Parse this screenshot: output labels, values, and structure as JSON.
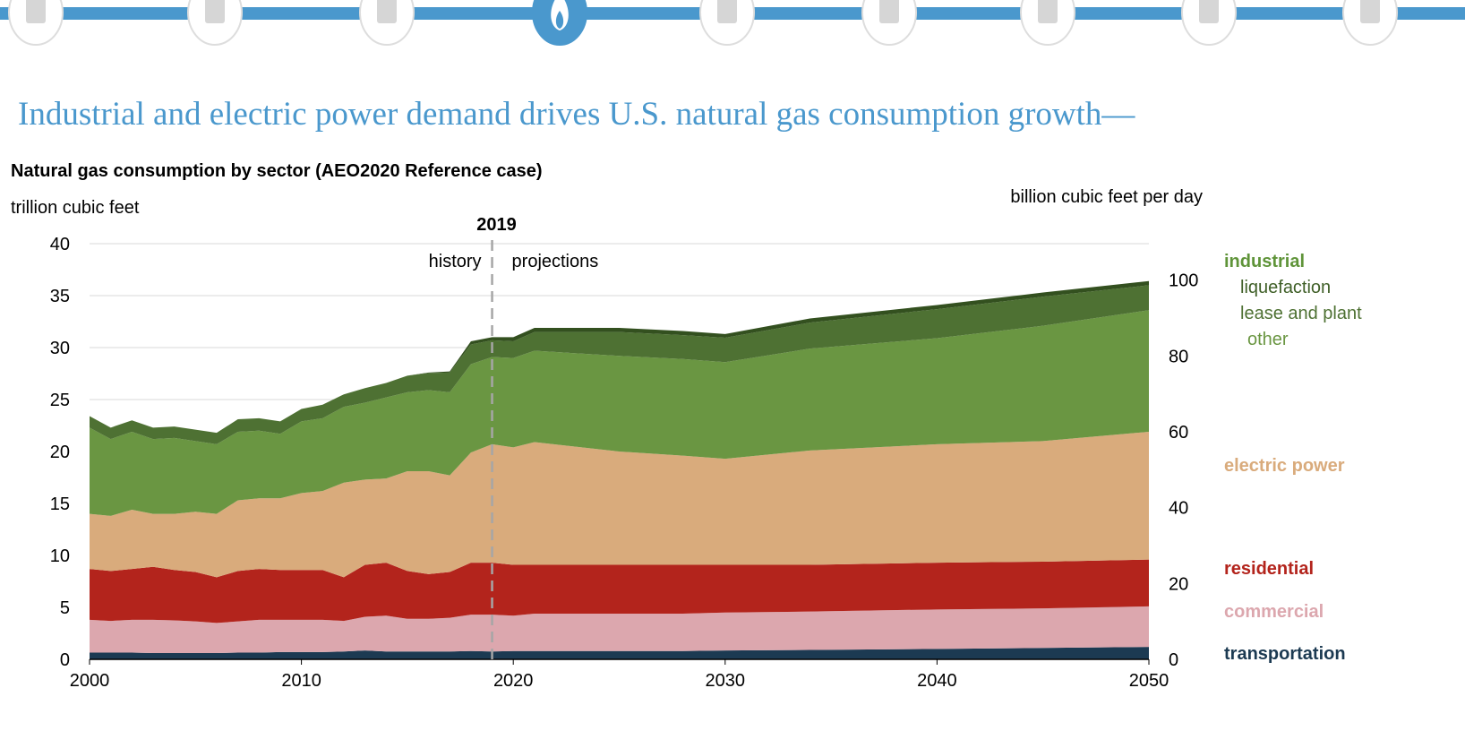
{
  "nav": {
    "accent": "#4a98cd",
    "icons": [
      "documents-icon",
      "magnifier-chart-icon",
      "oil-barrel-icon",
      "natural-gas-flame-icon",
      "electricity-bolt-icon",
      "car-icon",
      "commercial-building-icon",
      "industrial-factory-icon",
      "report-clipboard-icon"
    ],
    "active_index": 3
  },
  "title": "Industrial and electric power demand drives U.S. natural gas consumption growth—",
  "chart_data": {
    "type": "area",
    "stacked": true,
    "title": "Natural gas consumption by sector (AEO2020 Reference case)",
    "ylabel_left": "trillion cubic feet",
    "ylabel_right": "billion cubic feet per day",
    "xlim": [
      2000,
      2050
    ],
    "ylim_left": [
      0,
      40
    ],
    "ylim_right": [
      0,
      110
    ],
    "x_ticks": [
      "2000",
      "2010",
      "2020",
      "2030",
      "2040",
      "2050"
    ],
    "y_ticks_left": [
      "0",
      "5",
      "10",
      "15",
      "20",
      "25",
      "30",
      "35",
      "40"
    ],
    "y_ticks_right": [
      "0",
      "20",
      "40",
      "60",
      "80",
      "100"
    ],
    "grid": true,
    "divider": {
      "year": 2019,
      "label": "2019",
      "left_label": "history",
      "right_label": "projections"
    },
    "x": [
      2000,
      2001,
      2002,
      2003,
      2004,
      2005,
      2006,
      2007,
      2008,
      2009,
      2010,
      2011,
      2012,
      2013,
      2014,
      2015,
      2016,
      2017,
      2018,
      2019,
      2020,
      2021,
      2025,
      2028,
      2030,
      2034,
      2040,
      2045,
      2050
    ],
    "series": [
      {
        "name": "transportation",
        "color": "#1c3a52",
        "values": [
          0.65,
          0.65,
          0.65,
          0.6,
          0.6,
          0.6,
          0.6,
          0.65,
          0.65,
          0.7,
          0.7,
          0.7,
          0.75,
          0.85,
          0.75,
          0.75,
          0.75,
          0.75,
          0.8,
          0.75,
          0.8,
          0.8,
          0.8,
          0.8,
          0.85,
          0.9,
          1.0,
          1.1,
          1.2
        ]
      },
      {
        "name": "commercial",
        "color": "#dca7ae",
        "values": [
          3.15,
          3.05,
          3.15,
          3.2,
          3.15,
          3.05,
          2.9,
          3.0,
          3.15,
          3.1,
          3.1,
          3.1,
          2.95,
          3.25,
          3.45,
          3.15,
          3.15,
          3.25,
          3.5,
          3.55,
          3.4,
          3.6,
          3.6,
          3.6,
          3.65,
          3.7,
          3.8,
          3.8,
          3.9
        ]
      },
      {
        "name": "residential",
        "color": "#b3241c",
        "values": [
          4.9,
          4.8,
          4.9,
          5.1,
          4.85,
          4.75,
          4.4,
          4.85,
          4.9,
          4.8,
          4.8,
          4.8,
          4.2,
          5.0,
          5.1,
          4.6,
          4.3,
          4.4,
          5.0,
          5.0,
          4.9,
          4.7,
          4.7,
          4.7,
          4.6,
          4.5,
          4.5,
          4.5,
          4.5
        ]
      },
      {
        "name": "electric power",
        "color": "#d9ab7c",
        "values": [
          5.3,
          5.3,
          5.7,
          5.1,
          5.4,
          5.8,
          6.1,
          6.8,
          6.8,
          6.9,
          7.4,
          7.6,
          9.1,
          8.2,
          8.1,
          9.6,
          9.9,
          9.3,
          10.6,
          11.4,
          11.3,
          11.8,
          10.9,
          10.5,
          10.2,
          11.0,
          11.4,
          11.6,
          12.3
        ]
      },
      {
        "name": "other",
        "color": "#6a9642",
        "values": [
          8.3,
          7.4,
          7.5,
          7.2,
          7.3,
          6.8,
          6.7,
          6.6,
          6.5,
          6.2,
          6.9,
          7.0,
          7.3,
          7.4,
          7.8,
          7.6,
          7.8,
          8.0,
          8.5,
          8.4,
          8.6,
          8.8,
          9.2,
          9.3,
          9.3,
          9.8,
          10.2,
          11.1,
          11.7
        ]
      },
      {
        "name": "lease and plant",
        "color": "#4e7133",
        "values": [
          1.1,
          1.1,
          1.1,
          1.1,
          1.1,
          1.1,
          1.1,
          1.2,
          1.2,
          1.2,
          1.2,
          1.3,
          1.2,
          1.4,
          1.4,
          1.6,
          1.65,
          1.9,
          1.9,
          1.6,
          1.6,
          1.8,
          2.3,
          2.3,
          2.35,
          2.5,
          2.8,
          2.8,
          2.4
        ]
      },
      {
        "name": "liquefaction",
        "color": "#33501f",
        "values": [
          0,
          0,
          0,
          0,
          0,
          0,
          0,
          0,
          0,
          0,
          0,
          0,
          0,
          0,
          0,
          0,
          0.05,
          0.1,
          0.3,
          0.3,
          0.4,
          0.4,
          0.4,
          0.4,
          0.35,
          0.4,
          0.4,
          0.4,
          0.4
        ]
      }
    ],
    "legend": {
      "placement": "right",
      "group_label": "industrial",
      "group_color": "#5f9439",
      "items": [
        {
          "label": "liquefaction",
          "color": "#3f5f27",
          "bold": false
        },
        {
          "label": "lease and plant",
          "color": "#4e7133",
          "bold": false
        },
        {
          "label": "other",
          "color": "#6a9642",
          "bold": false
        },
        {
          "label": "electric power",
          "color": "#d9ab7c",
          "bold": true
        },
        {
          "label": "residential",
          "color": "#b3241c",
          "bold": true
        },
        {
          "label": "commercial",
          "color": "#dca7ae",
          "bold": true
        },
        {
          "label": "transportation",
          "color": "#1c3a52",
          "bold": true
        }
      ]
    }
  }
}
